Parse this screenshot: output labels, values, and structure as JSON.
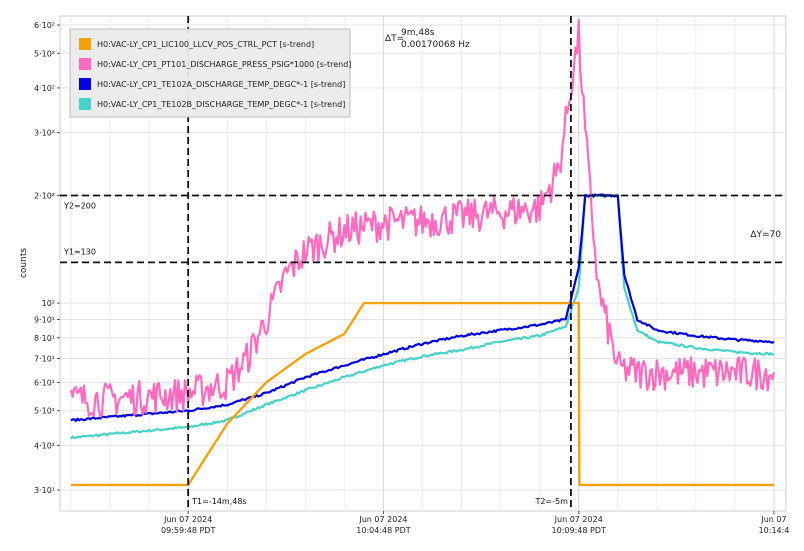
{
  "chart_data": {
    "type": "line",
    "ylabel": "counts",
    "yscale": "log",
    "ylim": [
      28,
      620
    ],
    "y_ticks": [
      {
        "value": 30,
        "label": "3·10¹"
      },
      {
        "value": 40,
        "label": "4·10¹"
      },
      {
        "value": 50,
        "label": "5·10¹"
      },
      {
        "value": 60,
        "label": "6·10¹"
      },
      {
        "value": 70,
        "label": "7·10¹"
      },
      {
        "value": 80,
        "label": "8·10¹"
      },
      {
        "value": 90,
        "label": "9·10¹"
      },
      {
        "value": 100,
        "label": "10²"
      },
      {
        "value": 200,
        "label": "2·10²"
      },
      {
        "value": 300,
        "label": "3·10²"
      },
      {
        "value": 400,
        "label": "4·10²"
      },
      {
        "value": 500,
        "label": "5·10²"
      },
      {
        "value": 600,
        "label": "6·10²"
      }
    ],
    "xlim": [
      "2024-06-07 09:56:48",
      "2024-06-07 10:14:48"
    ],
    "x_ticks": [
      {
        "value": "2024-06-07 09:59:48",
        "label1": "Jun 07 2024",
        "label2": "09:59:48 PDT"
      },
      {
        "value": "2024-06-07 10:04:48",
        "label1": "Jun 07 2024",
        "label2": "10:04:48 PDT"
      },
      {
        "value": "2024-06-07 10:09:48",
        "label1": "Jun 07 2024",
        "label2": "10:09:48 PDT"
      },
      {
        "value": "2024-06-07 10:14:48",
        "label1": "Jun 07",
        "label2": "10:14:4"
      }
    ],
    "grid": true,
    "legend_position": "top-left",
    "series": [
      {
        "name": "H0:VAC-LY_CP1_LIC100_LLCV_POS_CTRL_PCT [s-trend]",
        "color": "#f5a10a",
        "x": [
          "2024-06-07 09:56:48",
          "2024-06-07 09:59:48",
          "2024-06-07 10:00:48",
          "2024-06-07 10:01:48",
          "2024-06-07 10:02:48",
          "2024-06-07 10:03:48",
          "2024-06-07 10:04:18",
          "2024-06-07 10:09:48",
          "2024-06-07 10:09:49",
          "2024-06-07 10:14:48"
        ],
        "y": [
          31,
          31,
          46,
          60,
          72,
          82,
          100,
          100,
          31,
          31
        ]
      },
      {
        "name": "H0:VAC-LY_CP1_PT101_DISCHARGE_PRESS_PSIG*1000 [s-trend]",
        "color": "#ff69c0",
        "x": [
          "2024-06-07 09:56:48",
          "2024-06-07 09:57:48",
          "2024-06-07 09:58:48",
          "2024-06-07 09:59:48",
          "2024-06-07 10:00:48",
          "2024-06-07 10:01:18",
          "2024-06-07 10:01:48",
          "2024-06-07 10:02:18",
          "2024-06-07 10:02:48",
          "2024-06-07 10:03:48",
          "2024-06-07 10:04:48",
          "2024-06-07 10:05:48",
          "2024-06-07 10:06:48",
          "2024-06-07 10:07:48",
          "2024-06-07 10:08:48",
          "2024-06-07 10:09:18",
          "2024-06-07 10:09:38",
          "2024-06-07 10:09:48",
          "2024-06-07 10:09:58",
          "2024-06-07 10:10:18",
          "2024-06-07 10:10:48",
          "2024-06-07 10:11:18",
          "2024-06-07 10:12:18",
          "2024-06-07 10:13:18",
          "2024-06-07 10:14:48"
        ],
        "y": [
          54,
          54,
          55,
          56,
          60,
          70,
          90,
          120,
          140,
          160,
          168,
          170,
          175,
          180,
          185,
          240,
          430,
          560,
          300,
          110,
          66,
          64,
          64,
          64,
          64
        ]
      },
      {
        "name": "H0:VAC-LY_CP1_TE102A_DISCHARGE_TEMP_DEGC*-1 [s-trend]",
        "color": "#0000e0",
        "x": [
          "2024-06-07 09:56:48",
          "2024-06-07 09:57:48",
          "2024-06-07 09:58:48",
          "2024-06-07 09:59:48",
          "2024-06-07 10:00:48",
          "2024-06-07 10:01:48",
          "2024-06-07 10:02:48",
          "2024-06-07 10:03:48",
          "2024-06-07 10:04:48",
          "2024-06-07 10:05:48",
          "2024-06-07 10:06:48",
          "2024-06-07 10:07:48",
          "2024-06-07 10:08:48",
          "2024-06-07 10:09:28",
          "2024-06-07 10:09:48",
          "2024-06-07 10:09:58",
          "2024-06-07 10:10:48",
          "2024-06-07 10:10:58",
          "2024-06-07 10:11:18",
          "2024-06-07 10:11:48",
          "2024-06-07 10:12:48",
          "2024-06-07 10:13:48",
          "2024-06-07 10:14:48"
        ],
        "y": [
          47,
          48,
          49,
          50,
          52,
          56,
          62,
          67,
          72,
          77,
          81,
          84,
          87,
          90,
          125,
          200,
          200,
          120,
          90,
          84,
          81,
          79,
          78
        ]
      },
      {
        "name": "H0:VAC-LY_CP1_TE102B_DISCHARGE_TEMP_DEGC*-1 [s-trend]",
        "color": "#48d1c8",
        "x": [
          "2024-06-07 09:56:48",
          "2024-06-07 09:57:48",
          "2024-06-07 09:58:48",
          "2024-06-07 09:59:48",
          "2024-06-07 10:00:48",
          "2024-06-07 10:01:48",
          "2024-06-07 10:02:48",
          "2024-06-07 10:03:48",
          "2024-06-07 10:04:48",
          "2024-06-07 10:05:48",
          "2024-06-07 10:06:48",
          "2024-06-07 10:07:48",
          "2024-06-07 10:08:48",
          "2024-06-07 10:09:28",
          "2024-06-07 10:09:48",
          "2024-06-07 10:09:58",
          "2024-06-07 10:10:48",
          "2024-06-07 10:10:58",
          "2024-06-07 10:11:18",
          "2024-06-07 10:11:48",
          "2024-06-07 10:12:48",
          "2024-06-07 10:13:48",
          "2024-06-07 10:14:48"
        ],
        "y": [
          42,
          43,
          44,
          45,
          47,
          52,
          57,
          62,
          67,
          71,
          74,
          78,
          81,
          86,
          110,
          200,
          200,
          110,
          84,
          78,
          75,
          73,
          72
        ]
      }
    ],
    "cursors": {
      "t1": {
        "value": "2024-06-07 09:59:48",
        "label": "T1=-14m,48s"
      },
      "t2": {
        "value": "2024-06-07 10:09:36",
        "label": "T2=-5m"
      },
      "y1": {
        "value": 130,
        "label": "Y1=130"
      },
      "y2": {
        "value": 200,
        "label": "Y2=200"
      },
      "delta_t_prefix": "ΔT=",
      "delta_t": "9m,48s",
      "delta_f": "0.00170068 Hz",
      "delta_y": "ΔY=70"
    }
  }
}
